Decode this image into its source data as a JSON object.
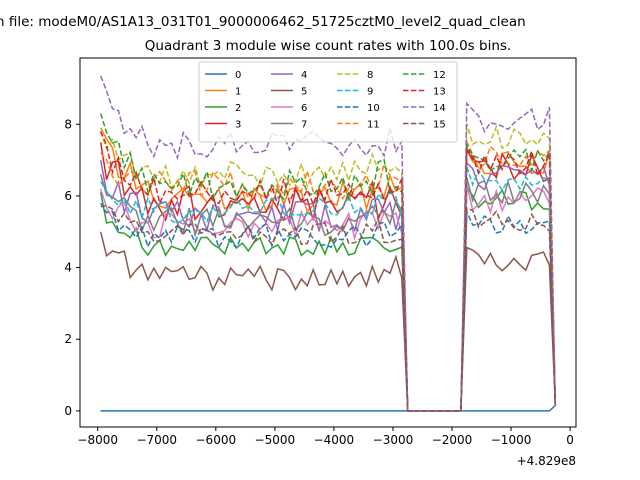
{
  "chart_data": {
    "type": "line",
    "supertitle": "n file: modeM0/AS1A13_031T01_9000006462_51725cztM0_level2_quad_clean",
    "title": "Quadrant 3 module wise count rates with 100.0s bins.",
    "xlabel": "",
    "ylabel": "",
    "x_offset_label": "+4.829e8",
    "xlim": [
      -8300,
      100
    ],
    "ylim": [
      -0.45,
      9.85
    ],
    "xticks": [
      -8000,
      -7000,
      -6000,
      -5000,
      -4000,
      -3000,
      -2000,
      -1000,
      0
    ],
    "xtick_labels": [
      "−8000",
      "−7000",
      "−6000",
      "−5000",
      "−4000",
      "−3000",
      "−2000",
      "−1000",
      "0"
    ],
    "yticks": [
      0,
      2,
      4,
      6,
      8
    ],
    "ytick_labels": [
      "0",
      "2",
      "4",
      "6",
      "8"
    ],
    "grid": false,
    "legend_position": "top-center",
    "legend_columns": 4,
    "bin_size_s": 100,
    "segments": [
      {
        "x_start": -7950,
        "x_end": -2850
      },
      {
        "x_start": -1750,
        "x_end": -350
      }
    ],
    "gap": {
      "x_drop_start": -2850,
      "x_zero_start": -2750,
      "x_zero_end": -1850,
      "x_rise_end": -1750
    },
    "series": [
      {
        "name": "0",
        "color": "#1f77b4",
        "dash": "solid",
        "base1": 0.0,
        "slope1": 0.0,
        "noise1": 0.0,
        "base2": 0.0,
        "noise2": 0.0,
        "start": 0.0
      },
      {
        "name": "1",
        "color": "#ff7f0e",
        "dash": "solid",
        "base1": 6.0,
        "slope1": 0.0,
        "noise1": 0.45,
        "base2": 6.9,
        "noise2": 0.35,
        "start": 7.9
      },
      {
        "name": "2",
        "color": "#2ca02c",
        "dash": "solid",
        "base1": 4.6,
        "slope1": 0.0,
        "noise1": 0.3,
        "base2": 5.9,
        "noise2": 0.3,
        "start": 6.1
      },
      {
        "name": "3",
        "color": "#d62728",
        "dash": "solid",
        "base1": 5.8,
        "slope1": 0.0,
        "noise1": 0.5,
        "base2": 6.8,
        "noise2": 0.4,
        "start": 7.5
      },
      {
        "name": "4",
        "color": "#9467bd",
        "dash": "solid",
        "base1": 5.4,
        "slope1": 0.0,
        "noise1": 0.45,
        "base2": 6.5,
        "noise2": 0.35,
        "start": 7.0
      },
      {
        "name": "5",
        "color": "#8c564b",
        "dash": "solid",
        "base1": 3.7,
        "slope1": 0.0,
        "noise1": 0.35,
        "base2": 4.2,
        "noise2": 0.3,
        "start": 5.0
      },
      {
        "name": "6",
        "color": "#e377c2",
        "dash": "solid",
        "base1": 5.2,
        "slope1": 0.0,
        "noise1": 0.4,
        "base2": 5.9,
        "noise2": 0.35,
        "start": 6.2
      },
      {
        "name": "7",
        "color": "#7f7f7f",
        "dash": "solid",
        "base1": 5.3,
        "slope1": 0.0,
        "noise1": 0.4,
        "base2": 6.1,
        "noise2": 0.35,
        "start": 6.6
      },
      {
        "name": "8",
        "color": "#bcbd22",
        "dash": "dashed",
        "base1": 6.6,
        "slope1": 0.0,
        "noise1": 0.4,
        "base2": 7.6,
        "noise2": 0.35,
        "start": 7.8
      },
      {
        "name": "9",
        "color": "#17becf",
        "dash": "dashed",
        "base1": 5.6,
        "slope1": 0.0,
        "noise1": 0.4,
        "base2": 6.4,
        "noise2": 0.35,
        "start": 6.4
      },
      {
        "name": "10",
        "color": "#1f77b4",
        "dash": "dashed",
        "base1": 4.9,
        "slope1": 0.0,
        "noise1": 0.35,
        "base2": 5.2,
        "noise2": 0.3,
        "start": 5.8
      },
      {
        "name": "11",
        "color": "#ff7f0e",
        "dash": "dashed",
        "base1": 6.3,
        "slope1": 0.0,
        "noise1": 0.4,
        "base2": 7.1,
        "noise2": 0.35,
        "start": 7.2
      },
      {
        "name": "12",
        "color": "#2ca02c",
        "dash": "dashed",
        "base1": 6.3,
        "slope1": 0.0,
        "noise1": 0.45,
        "base2": 7.0,
        "noise2": 0.35,
        "start": 8.3
      },
      {
        "name": "13",
        "color": "#d62728",
        "dash": "dashed",
        "base1": 6.1,
        "slope1": 0.0,
        "noise1": 0.4,
        "base2": 6.9,
        "noise2": 0.35,
        "start": 7.8
      },
      {
        "name": "14",
        "color": "#9467bd",
        "dash": "dashed",
        "base1": 7.4,
        "slope1": 0.0,
        "noise1": 0.4,
        "base2": 8.1,
        "noise2": 0.4,
        "start": 9.35
      },
      {
        "name": "15",
        "color": "#8c564b",
        "dash": "dashed",
        "base1": 4.9,
        "slope1": 0.0,
        "noise1": 0.35,
        "base2": 5.3,
        "noise2": 0.3,
        "start": 5.7
      }
    ]
  }
}
